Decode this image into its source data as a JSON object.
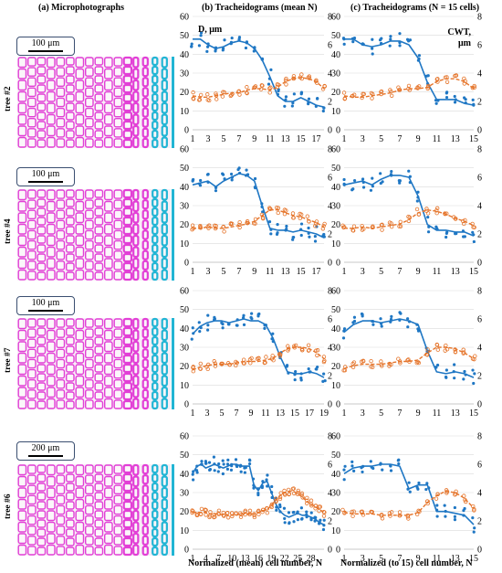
{
  "headers": {
    "a": "(a) Microphotographs",
    "b": "(b) Tracheidograms (mean N)",
    "c": "(c) Tracheidograms (N = 15 cells)"
  },
  "axis_labels": {
    "left_unit": "D, μm",
    "right_unit_line1": "CWT,",
    "right_unit_line2": "μm",
    "x_b": "Normalized (mean) cell number, N",
    "x_c": "Normalized (to 15) cell number, N"
  },
  "colors": {
    "diameter": "#1f77c4",
    "wall": "#e5742a",
    "pink": "#e23fd6",
    "cyan": "#22b5d4"
  },
  "micro_panels": [
    {
      "tree": "tree #2",
      "scale": "100 μm"
    },
    {
      "tree": "tree #4",
      "scale": "100 μm"
    },
    {
      "tree": "tree #7",
      "scale": "100 μm"
    },
    {
      "tree": "tree #6",
      "scale": "200 μm"
    }
  ],
  "chart_data": [
    {
      "type": "scatter",
      "panel": "b",
      "tree": "tree #2",
      "ylim": [
        0,
        60
      ],
      "y2lim": [
        0,
        8
      ],
      "x_ticks": [
        "1",
        "3",
        "5",
        "7",
        "9",
        "11",
        "13",
        "15",
        "17"
      ],
      "series": [
        {
          "axis": "left",
          "x": [
            1,
            2,
            3,
            4,
            5,
            6,
            7,
            8,
            9,
            10,
            11,
            12,
            13,
            14,
            15,
            16,
            17,
            18
          ],
          "values": [
            48,
            48,
            45,
            43,
            44,
            46,
            47,
            46,
            43,
            37,
            28,
            18,
            15,
            15,
            17,
            15,
            13,
            12
          ]
        },
        {
          "axis": "right",
          "x": [
            1,
            2,
            3,
            4,
            5,
            6,
            7,
            8,
            9,
            10,
            11,
            12,
            13,
            14,
            15,
            16,
            17,
            18
          ],
          "values": [
            2.4,
            2.3,
            2.3,
            2.4,
            2.5,
            2.6,
            2.6,
            2.8,
            2.9,
            2.9,
            2.8,
            3.0,
            3.4,
            3.6,
            3.7,
            3.6,
            3.4,
            2.9
          ]
        }
      ]
    },
    {
      "type": "scatter",
      "panel": "c",
      "tree": "tree #2",
      "ylim": [
        0,
        60
      ],
      "y2lim": [
        0,
        8
      ],
      "x_ticks": [
        "1",
        "3",
        "5",
        "7",
        "9",
        "11",
        "13",
        "15"
      ],
      "series": [
        {
          "axis": "left",
          "x": [
            1,
            2,
            3,
            4,
            5,
            6,
            7,
            8,
            9,
            10,
            11,
            12,
            13,
            14,
            15
          ],
          "values": [
            48,
            48,
            45,
            44,
            45,
            47,
            47,
            45,
            38,
            25,
            16,
            16,
            16,
            14,
            13
          ]
        },
        {
          "axis": "right",
          "x": [
            1,
            2,
            3,
            4,
            5,
            6,
            7,
            8,
            9,
            10,
            11,
            12,
            13,
            14,
            15
          ],
          "values": [
            2.4,
            2.3,
            2.3,
            2.4,
            2.5,
            2.6,
            2.8,
            2.9,
            2.9,
            3.0,
            3.4,
            3.6,
            3.6,
            3.4,
            2.9
          ]
        }
      ]
    },
    {
      "type": "scatter",
      "panel": "b",
      "tree": "tree #4",
      "ylim": [
        0,
        60
      ],
      "y2lim": [
        0,
        8
      ],
      "x_ticks": [
        "1",
        "3",
        "5",
        "7",
        "9",
        "11",
        "13",
        "15",
        "17"
      ],
      "series": [
        {
          "axis": "left",
          "x": [
            1,
            2,
            3,
            4,
            5,
            6,
            7,
            8,
            9,
            10,
            11,
            12,
            13,
            14,
            15,
            16,
            17,
            18
          ],
          "values": [
            41,
            42,
            43,
            40,
            43,
            45,
            47,
            46,
            43,
            30,
            18,
            17,
            17,
            16,
            17,
            16,
            15,
            13
          ]
        },
        {
          "axis": "right",
          "x": [
            1,
            2,
            3,
            4,
            5,
            6,
            7,
            8,
            9,
            10,
            11,
            12,
            13,
            14,
            15,
            16,
            17,
            18
          ],
          "values": [
            2.4,
            2.4,
            2.5,
            2.4,
            2.4,
            2.5,
            2.6,
            2.7,
            2.9,
            3.3,
            3.7,
            3.7,
            3.5,
            3.3,
            3.2,
            3.0,
            2.8,
            2.5
          ]
        }
      ]
    },
    {
      "type": "scatter",
      "panel": "c",
      "tree": "tree #4",
      "ylim": [
        0,
        60
      ],
      "y2lim": [
        0,
        8
      ],
      "x_ticks": [
        "1",
        "3",
        "5",
        "7",
        "9",
        "11",
        "13",
        "15"
      ],
      "series": [
        {
          "axis": "left",
          "x": [
            1,
            2,
            3,
            4,
            5,
            6,
            7,
            8,
            9,
            10,
            11,
            12,
            13,
            14,
            15
          ],
          "values": [
            41,
            42,
            43,
            41,
            44,
            46,
            46,
            45,
            35,
            20,
            17,
            17,
            16,
            16,
            14
          ]
        },
        {
          "axis": "right",
          "x": [
            1,
            2,
            3,
            4,
            5,
            6,
            7,
            8,
            9,
            10,
            11,
            12,
            13,
            14,
            15
          ],
          "values": [
            2.4,
            2.4,
            2.5,
            2.4,
            2.5,
            2.6,
            2.7,
            3.0,
            3.5,
            3.7,
            3.6,
            3.4,
            3.1,
            2.9,
            2.6
          ]
        }
      ]
    },
    {
      "type": "scatter",
      "panel": "b",
      "tree": "tree #7",
      "ylim": [
        0,
        60
      ],
      "y2lim": [
        0,
        8
      ],
      "x_ticks": [
        "1",
        "3",
        "5",
        "7",
        "9",
        "11",
        "13",
        "15",
        "17",
        "19"
      ],
      "series": [
        {
          "axis": "left",
          "x": [
            1,
            2,
            3,
            4,
            5,
            6,
            7,
            8,
            9,
            10,
            11,
            12,
            13,
            14,
            15,
            16,
            17,
            18,
            19
          ],
          "values": [
            37,
            41,
            43,
            44,
            44,
            43,
            44,
            45,
            44,
            44,
            42,
            35,
            25,
            17,
            16,
            16,
            17,
            16,
            14
          ]
        },
        {
          "axis": "right",
          "x": [
            1,
            2,
            3,
            4,
            5,
            6,
            7,
            8,
            9,
            10,
            11,
            12,
            13,
            14,
            15,
            16,
            17,
            18,
            19
          ],
          "values": [
            2.4,
            2.6,
            2.7,
            2.8,
            2.8,
            2.8,
            2.9,
            3.0,
            3.0,
            3.0,
            3.1,
            3.2,
            3.6,
            3.9,
            4.0,
            4.0,
            3.9,
            3.6,
            3.2
          ]
        }
      ]
    },
    {
      "type": "scatter",
      "panel": "c",
      "tree": "tree #7",
      "ylim": [
        0,
        60
      ],
      "y2lim": [
        0,
        8
      ],
      "x_ticks": [
        "1",
        "3",
        "5",
        "7",
        "9",
        "11",
        "13",
        "15"
      ],
      "series": [
        {
          "axis": "left",
          "x": [
            1,
            2,
            3,
            4,
            5,
            6,
            7,
            8,
            9,
            10,
            11,
            12,
            13,
            14,
            15
          ],
          "values": [
            38,
            42,
            44,
            44,
            43,
            44,
            45,
            44,
            42,
            28,
            17,
            16,
            17,
            16,
            14
          ]
        },
        {
          "axis": "right",
          "x": [
            1,
            2,
            3,
            4,
            5,
            6,
            7,
            8,
            9,
            10,
            11,
            12,
            13,
            14,
            15
          ],
          "values": [
            2.5,
            2.7,
            2.8,
            2.8,
            2.8,
            2.9,
            3.0,
            3.0,
            3.1,
            3.6,
            4.0,
            4.0,
            3.9,
            3.6,
            3.2
          ]
        }
      ]
    },
    {
      "type": "scatter",
      "panel": "b",
      "tree": "tree #6",
      "ylim": [
        0,
        60
      ],
      "y2lim": [
        0,
        8
      ],
      "x_ticks": [
        "1",
        "4",
        "7",
        "10",
        "13",
        "16",
        "19",
        "22",
        "25",
        "28"
      ],
      "series": [
        {
          "axis": "left",
          "x": [
            1,
            2,
            3,
            4,
            5,
            6,
            7,
            8,
            9,
            10,
            11,
            12,
            13,
            14,
            15,
            16,
            17,
            18,
            19,
            20,
            21,
            22,
            23,
            24,
            25,
            26,
            27,
            28,
            29,
            30,
            31
          ],
          "values": [
            40,
            44,
            45,
            43,
            44,
            45,
            44,
            43,
            44,
            45,
            45,
            44,
            44,
            44,
            34,
            31,
            35,
            36,
            30,
            24,
            20,
            18,
            17,
            18,
            19,
            18,
            18,
            17,
            16,
            14,
            13
          ]
        },
        {
          "axis": "right",
          "x": [
            1,
            2,
            3,
            4,
            5,
            6,
            7,
            8,
            9,
            10,
            11,
            12,
            13,
            14,
            15,
            16,
            17,
            18,
            19,
            20,
            21,
            22,
            23,
            24,
            25,
            26,
            27,
            28,
            29,
            30,
            31
          ],
          "values": [
            2.6,
            2.6,
            2.6,
            2.6,
            2.5,
            2.5,
            2.5,
            2.4,
            2.4,
            2.4,
            2.4,
            2.5,
            2.5,
            2.5,
            2.5,
            2.6,
            2.7,
            2.8,
            3.1,
            3.5,
            3.8,
            4.0,
            4.1,
            4.1,
            3.9,
            3.7,
            3.4,
            3.2,
            3.0,
            2.8,
            2.6
          ]
        }
      ]
    },
    {
      "type": "scatter",
      "panel": "c",
      "tree": "tree #6",
      "ylim": [
        0,
        60
      ],
      "y2lim": [
        0,
        8
      ],
      "x_ticks": [
        "1",
        "3",
        "5",
        "7",
        "9",
        "11",
        "13",
        "15"
      ],
      "series": [
        {
          "axis": "left",
          "x": [
            1,
            2,
            3,
            4,
            5,
            6,
            7,
            8,
            9,
            10,
            11,
            12,
            13,
            14,
            15
          ],
          "values": [
            40,
            43,
            44,
            44,
            45,
            45,
            44,
            32,
            34,
            34,
            20,
            20,
            19,
            18,
            13
          ]
        },
        {
          "axis": "right",
          "x": [
            1,
            2,
            3,
            4,
            5,
            6,
            7,
            8,
            9,
            10,
            11,
            12,
            13,
            14,
            15
          ],
          "values": [
            2.6,
            2.5,
            2.5,
            2.5,
            2.4,
            2.4,
            2.4,
            2.4,
            2.6,
            3.3,
            3.8,
            4.1,
            4.0,
            3.6,
            2.9
          ]
        }
      ]
    }
  ]
}
